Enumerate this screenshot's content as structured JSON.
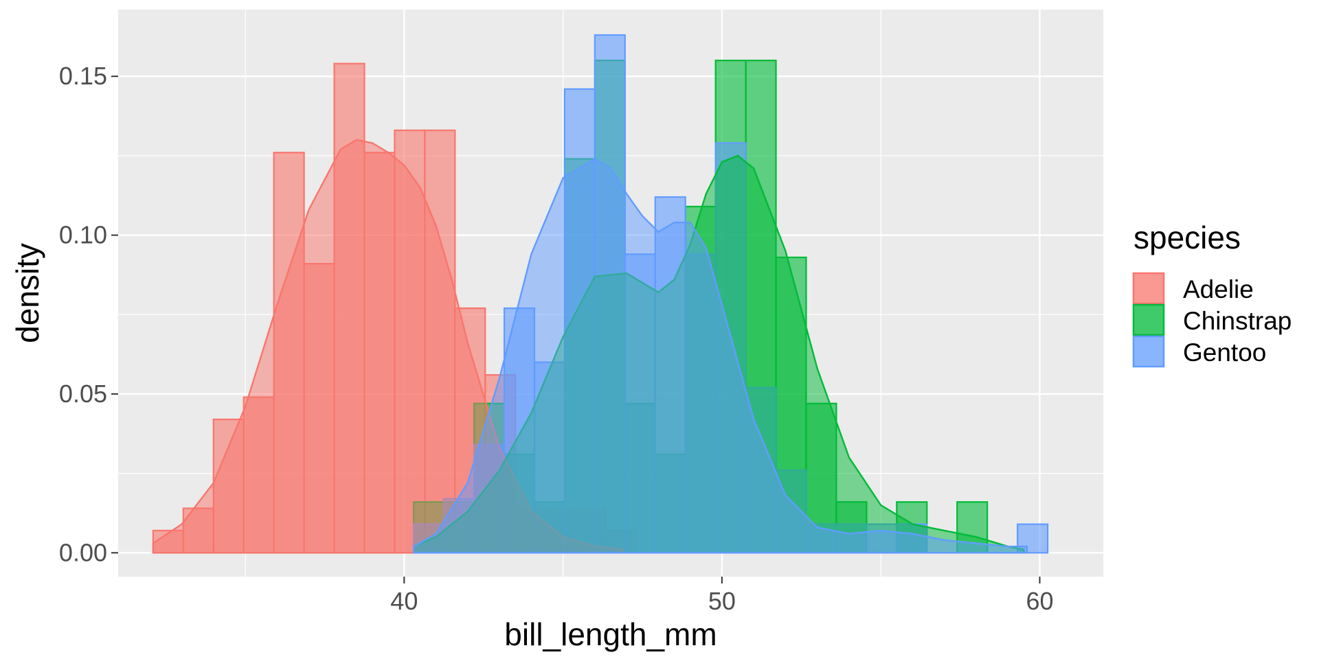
{
  "chart_data": {
    "type": "histogram-density",
    "xlabel": "bill_length_mm",
    "ylabel": "density",
    "xlim": [
      31.0,
      62.0
    ],
    "ylim": [
      -0.0075,
      0.171
    ],
    "x_ticks": [
      40,
      50,
      60
    ],
    "y_ticks": [
      0.0,
      0.05,
      0.1,
      0.15
    ],
    "x_tick_labels": [
      "40",
      "50",
      "60"
    ],
    "y_tick_labels": [
      "0.00",
      "0.05",
      "0.10",
      "0.15"
    ],
    "grid": true,
    "legend_position": "right",
    "legend": {
      "title": "species",
      "labels": [
        "Adelie",
        "Chinstrap",
        "Gentoo"
      ]
    },
    "bin_width": 0.95,
    "colors": {
      "Adelie": "#F8766D",
      "Chinstrap": "#00BA38",
      "Gentoo": "#619CFF"
    },
    "histogram": {
      "Adelie": {
        "x_start": [
          32.1,
          33.05,
          34.0,
          34.95,
          35.9,
          36.85,
          37.8,
          38.75,
          39.7,
          40.65,
          41.6,
          42.55,
          43.5,
          44.45,
          45.4,
          46.35
        ],
        "density": [
          0.007,
          0.014,
          0.042,
          0.049,
          0.126,
          0.091,
          0.154,
          0.126,
          0.133,
          0.133,
          0.077,
          0.056,
          0.014,
          0.014,
          0.014,
          0.007
        ]
      },
      "Chinstrap": {
        "x_start": [
          40.3,
          41.25,
          42.2,
          43.15,
          44.1,
          45.05,
          46.0,
          46.95,
          47.9,
          48.85,
          49.8,
          50.75,
          51.7,
          52.65,
          53.6,
          54.55,
          55.5,
          56.45,
          57.4,
          58.35
        ],
        "density": [
          0.016,
          0.016,
          0.047,
          0.031,
          0.016,
          0.124,
          0.155,
          0.047,
          0.031,
          0.109,
          0.155,
          0.155,
          0.093,
          0.047,
          0.016,
          0.0,
          0.016,
          0.0,
          0.016,
          0.0
        ]
      },
      "Gentoo": {
        "x_start": [
          40.3,
          41.25,
          42.2,
          43.15,
          44.1,
          45.05,
          46.0,
          46.95,
          47.9,
          48.85,
          49.8,
          50.75,
          51.7,
          52.65,
          53.6,
          54.55,
          55.5,
          56.45,
          57.4,
          58.35,
          59.3
        ],
        "density": [
          0.009,
          0.017,
          0.034,
          0.077,
          0.06,
          0.146,
          0.163,
          0.094,
          0.112,
          0.094,
          0.129,
          0.052,
          0.026,
          0.009,
          0.009,
          0.009,
          0.009,
          0.0,
          0.0,
          0.0,
          0.009
        ]
      }
    },
    "density_curve": {
      "Adelie": {
        "x": [
          32.1,
          33.0,
          34.0,
          35.0,
          36.0,
          37.0,
          38.0,
          38.5,
          39.0,
          39.5,
          40.0,
          40.5,
          41.0,
          41.5,
          42.0,
          43.0,
          44.0,
          45.0,
          46.0,
          46.9
        ],
        "y": [
          0.003,
          0.009,
          0.022,
          0.046,
          0.078,
          0.108,
          0.127,
          0.13,
          0.129,
          0.126,
          0.122,
          0.115,
          0.103,
          0.086,
          0.066,
          0.033,
          0.013,
          0.005,
          0.002,
          0.001
        ]
      },
      "Chinstrap": {
        "x": [
          40.3,
          41.0,
          42.0,
          43.0,
          44.0,
          45.0,
          46.0,
          47.0,
          48.0,
          48.5,
          49.0,
          49.5,
          50.0,
          50.5,
          51.0,
          52.0,
          53.0,
          54.0,
          55.0,
          56.0,
          57.0,
          58.0,
          59.0,
          59.5
        ],
        "y": [
          0.002,
          0.005,
          0.013,
          0.026,
          0.044,
          0.068,
          0.087,
          0.088,
          0.082,
          0.086,
          0.097,
          0.113,
          0.123,
          0.125,
          0.121,
          0.095,
          0.058,
          0.03,
          0.015,
          0.009,
          0.007,
          0.005,
          0.002,
          0.001
        ]
      },
      "Gentoo": {
        "x": [
          40.3,
          41.0,
          42.0,
          43.0,
          44.0,
          45.0,
          46.0,
          46.5,
          47.0,
          47.5,
          48.0,
          48.5,
          49.0,
          49.5,
          50.0,
          51.0,
          52.0,
          53.0,
          54.0,
          55.0,
          56.0,
          57.0,
          58.0,
          59.0,
          59.6
        ],
        "y": [
          0.002,
          0.006,
          0.022,
          0.055,
          0.094,
          0.118,
          0.124,
          0.121,
          0.113,
          0.106,
          0.101,
          0.104,
          0.104,
          0.096,
          0.078,
          0.042,
          0.018,
          0.008,
          0.006,
          0.007,
          0.006,
          0.004,
          0.003,
          0.002,
          0.002
        ]
      }
    }
  }
}
